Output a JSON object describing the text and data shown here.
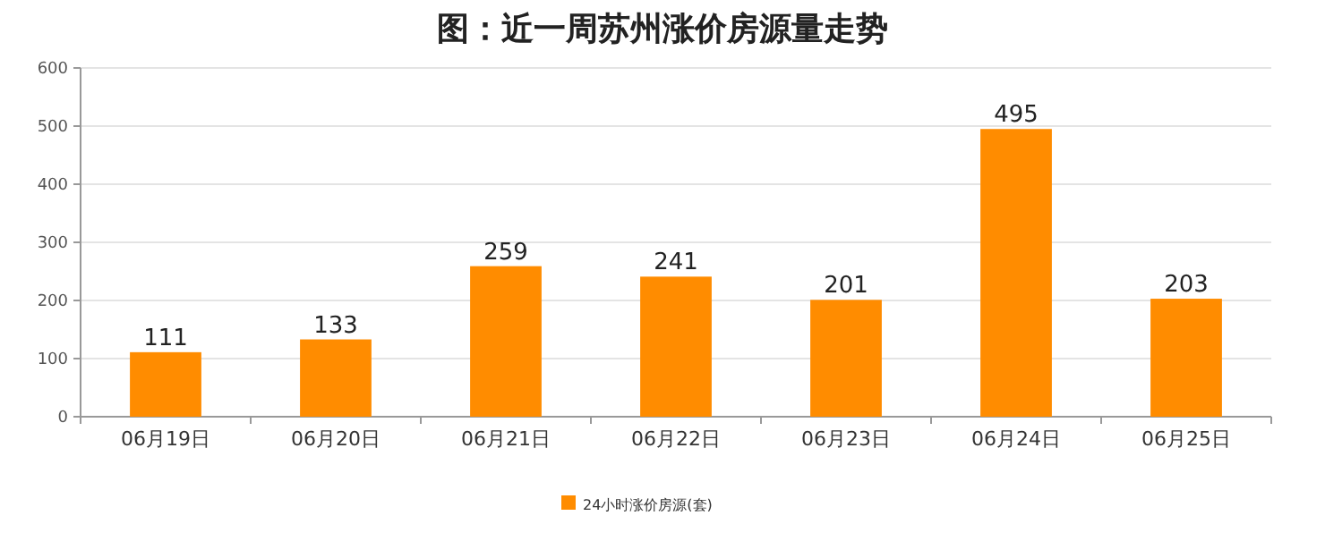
{
  "chart_data": {
    "type": "bar",
    "title": "图：近一周苏州涨价房源量走势",
    "categories": [
      "06月19日",
      "06月20日",
      "06月21日",
      "06月22日",
      "06月23日",
      "06月24日",
      "06月25日"
    ],
    "series": [
      {
        "name": "24小时涨价房源(套)",
        "color": "#ff8c00",
        "values": [
          111,
          133,
          259,
          241,
          201,
          495,
          203
        ]
      }
    ],
    "ylim": [
      0,
      600
    ],
    "yticks": [
      0,
      100,
      200,
      300,
      400,
      500,
      600
    ],
    "grid": "y",
    "legend": "bottom",
    "data_labels": true
  }
}
